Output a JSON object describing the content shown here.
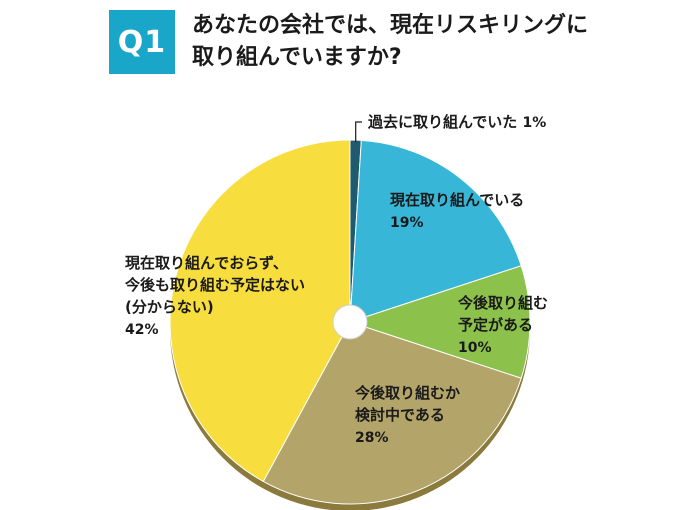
{
  "question": {
    "number": "Q1",
    "title_lines": [
      "あなたの会社では、現在リスキリングに",
      "取り組んでいますか?"
    ]
  },
  "chart_data": {
    "type": "pie",
    "slices": [
      {
        "label_lines": [
          "過去に取り組んでいた"
        ],
        "value": 1,
        "value_label": "1%",
        "color": "#1f5a6e"
      },
      {
        "label_lines": [
          "現在取り組んでいる"
        ],
        "value": 19,
        "value_label": "19%",
        "color": "#38b6d8"
      },
      {
        "label_lines": [
          "今後取り組む",
          "予定がある"
        ],
        "value": 10,
        "value_label": "10%",
        "color": "#8cc24c"
      },
      {
        "label_lines": [
          "今後取り組むか",
          "検討中である"
        ],
        "value": 28,
        "value_label": "28%",
        "color": "#b3a46a"
      },
      {
        "label_lines": [
          "現在取り組んでおらず、",
          "今後も取り組む予定はない",
          "(分からない)"
        ],
        "value": 42,
        "value_label": "42%",
        "color": "#f7dd3e"
      }
    ]
  }
}
